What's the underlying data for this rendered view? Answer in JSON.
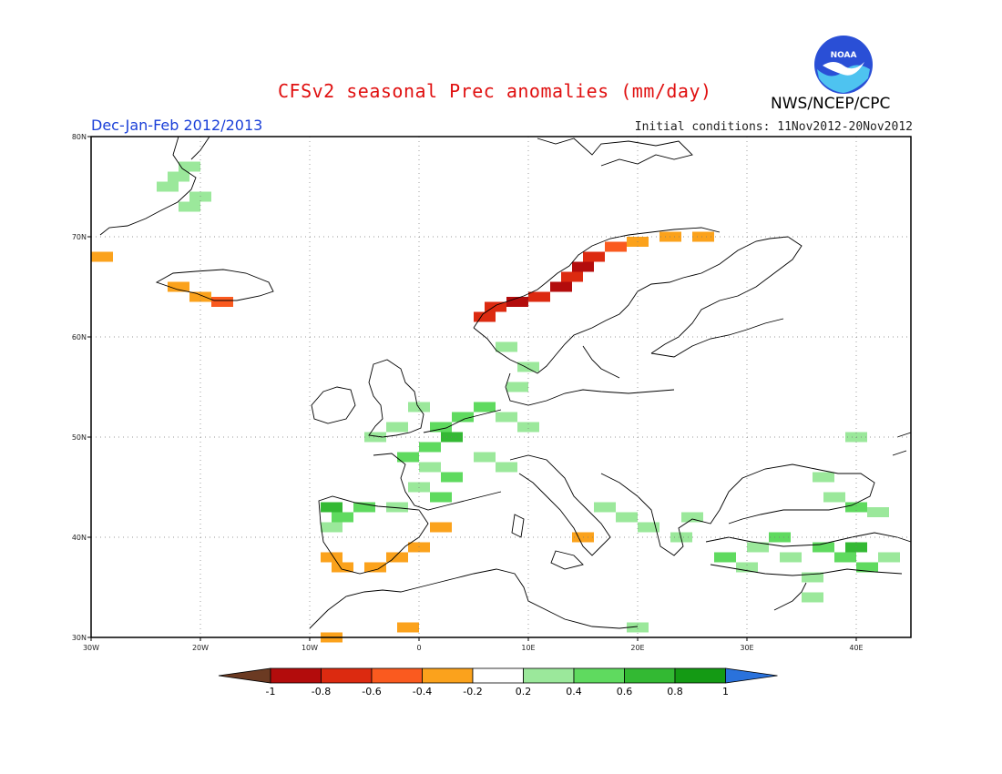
{
  "header": {
    "title": "CFSv2 seasonal Prec anomalies (mm/day)",
    "period": "Dec-Jan-Feb 2012/2013",
    "initial_conditions": "Initial conditions: 11Nov2012-20Nov2012",
    "agency": "NWS/NCEP/CPC",
    "logo_text": "NOAA"
  },
  "map": {
    "lon_range": [
      -30,
      45
    ],
    "lat_range": [
      30,
      80
    ],
    "lon_ticks": [
      "30W",
      "20W",
      "10W",
      "0",
      "10E",
      "20E",
      "30E",
      "40E"
    ],
    "lat_ticks": [
      "80N",
      "70N",
      "60N",
      "50N",
      "40N",
      "30N"
    ],
    "grid": true
  },
  "colorbar": {
    "labels": [
      "-1",
      "-0.8",
      "-0.6",
      "-0.4",
      "-0.2",
      "0.2",
      "0.4",
      "0.6",
      "0.8",
      "1"
    ],
    "colors": [
      "#6b3a22",
      "#b30c0c",
      "#dc2a10",
      "#fa5a1f",
      "#fba21c",
      "#ffffff",
      "#9be89b",
      "#5fda5f",
      "#33b933",
      "#149a14",
      "#2a72dc"
    ]
  },
  "anomaly_cells": [
    {
      "lat": 75,
      "lon": -23,
      "v": 0.3
    },
    {
      "lat": 76,
      "lon": -22,
      "v": 0.3
    },
    {
      "lat": 77,
      "lon": -21,
      "v": 0.3
    },
    {
      "lat": 74,
      "lon": -20,
      "v": 0.3
    },
    {
      "lat": 73,
      "lon": -21,
      "v": 0.3
    },
    {
      "lat": 68,
      "lon": -29,
      "v": -0.3
    },
    {
      "lat": 65,
      "lon": -22,
      "v": -0.3
    },
    {
      "lat": 64,
      "lon": -20,
      "v": -0.3
    },
    {
      "lat": 63.5,
      "lon": -18,
      "v": -0.5
    },
    {
      "lat": 63,
      "lon": 7,
      "v": -0.7
    },
    {
      "lat": 63.5,
      "lon": 9,
      "v": -0.9
    },
    {
      "lat": 64,
      "lon": 11,
      "v": -0.7
    },
    {
      "lat": 65,
      "lon": 13,
      "v": -0.9
    },
    {
      "lat": 66,
      "lon": 14,
      "v": -0.7
    },
    {
      "lat": 67,
      "lon": 15,
      "v": -0.9
    },
    {
      "lat": 68,
      "lon": 16,
      "v": -0.7
    },
    {
      "lat": 69,
      "lon": 18,
      "v": -0.5
    },
    {
      "lat": 69.5,
      "lon": 20,
      "v": -0.3
    },
    {
      "lat": 70,
      "lon": 23,
      "v": -0.3
    },
    {
      "lat": 70,
      "lon": 26,
      "v": -0.3
    },
    {
      "lat": 62,
      "lon": 6,
      "v": -0.7
    },
    {
      "lat": 59,
      "lon": 8,
      "v": 0.3
    },
    {
      "lat": 57,
      "lon": 10,
      "v": 0.3
    },
    {
      "lat": 55,
      "lon": 9,
      "v": 0.3
    },
    {
      "lat": 53,
      "lon": 6,
      "v": 0.5
    },
    {
      "lat": 52,
      "lon": 4,
      "v": 0.5
    },
    {
      "lat": 51,
      "lon": 2,
      "v": 0.5
    },
    {
      "lat": 50,
      "lon": 3,
      "v": 0.7
    },
    {
      "lat": 49,
      "lon": 1,
      "v": 0.5
    },
    {
      "lat": 48,
      "lon": -1,
      "v": 0.5
    },
    {
      "lat": 47,
      "lon": 1,
      "v": 0.3
    },
    {
      "lat": 46,
      "lon": 3,
      "v": 0.5
    },
    {
      "lat": 45,
      "lon": 0,
      "v": 0.3
    },
    {
      "lat": 44,
      "lon": 2,
      "v": 0.5
    },
    {
      "lat": 50,
      "lon": -4,
      "v": 0.3
    },
    {
      "lat": 51,
      "lon": -2,
      "v": 0.3
    },
    {
      "lat": 53,
      "lon": 0,
      "v": 0.3
    },
    {
      "lat": 52,
      "lon": 8,
      "v": 0.3
    },
    {
      "lat": 51,
      "lon": 10,
      "v": 0.3
    },
    {
      "lat": 48,
      "lon": 6,
      "v": 0.3
    },
    {
      "lat": 47,
      "lon": 8,
      "v": 0.3
    },
    {
      "lat": 43,
      "lon": -8,
      "v": 0.7
    },
    {
      "lat": 42,
      "lon": -7,
      "v": 0.5
    },
    {
      "lat": 43,
      "lon": -5,
      "v": 0.5
    },
    {
      "lat": 43,
      "lon": -2,
      "v": 0.3
    },
    {
      "lat": 41,
      "lon": -8,
      "v": 0.3
    },
    {
      "lat": 38,
      "lon": -8,
      "v": -0.3
    },
    {
      "lat": 37,
      "lon": -7,
      "v": -0.3
    },
    {
      "lat": 37,
      "lon": -4,
      "v": -0.3
    },
    {
      "lat": 38,
      "lon": -2,
      "v": -0.3
    },
    {
      "lat": 39,
      "lon": 0,
      "v": -0.3
    },
    {
      "lat": 41,
      "lon": 2,
      "v": -0.3
    },
    {
      "lat": 40,
      "lon": 15,
      "v": -0.3
    },
    {
      "lat": 31,
      "lon": -1,
      "v": -0.3
    },
    {
      "lat": 30,
      "lon": -8,
      "v": -0.3
    },
    {
      "lat": 43,
      "lon": 17,
      "v": 0.3
    },
    {
      "lat": 42,
      "lon": 19,
      "v": 0.3
    },
    {
      "lat": 41,
      "lon": 21,
      "v": 0.3
    },
    {
      "lat": 40,
      "lon": 24,
      "v": 0.3
    },
    {
      "lat": 42,
      "lon": 25,
      "v": 0.3
    },
    {
      "lat": 38,
      "lon": 28,
      "v": 0.5
    },
    {
      "lat": 37,
      "lon": 30,
      "v": 0.3
    },
    {
      "lat": 39,
      "lon": 31,
      "v": 0.3
    },
    {
      "lat": 38,
      "lon": 34,
      "v": 0.3
    },
    {
      "lat": 39,
      "lon": 37,
      "v": 0.5
    },
    {
      "lat": 38,
      "lon": 39,
      "v": 0.5
    },
    {
      "lat": 39,
      "lon": 40,
      "v": 0.7
    },
    {
      "lat": 37,
      "lon": 41,
      "v": 0.5
    },
    {
      "lat": 38,
      "lon": 43,
      "v": 0.3
    },
    {
      "lat": 40,
      "lon": 33,
      "v": 0.5
    },
    {
      "lat": 36,
      "lon": 36,
      "v": 0.3
    },
    {
      "lat": 34,
      "lon": 36,
      "v": 0.3
    },
    {
      "lat": 43,
      "lon": 40,
      "v": 0.5
    },
    {
      "lat": 42.5,
      "lon": 42,
      "v": 0.3
    },
    {
      "lat": 44,
      "lon": 38,
      "v": 0.3
    },
    {
      "lat": 46,
      "lon": 37,
      "v": 0.3
    },
    {
      "lat": 50,
      "lon": 40,
      "v": 0.3
    },
    {
      "lat": 31,
      "lon": 20,
      "v": 0.3
    }
  ]
}
